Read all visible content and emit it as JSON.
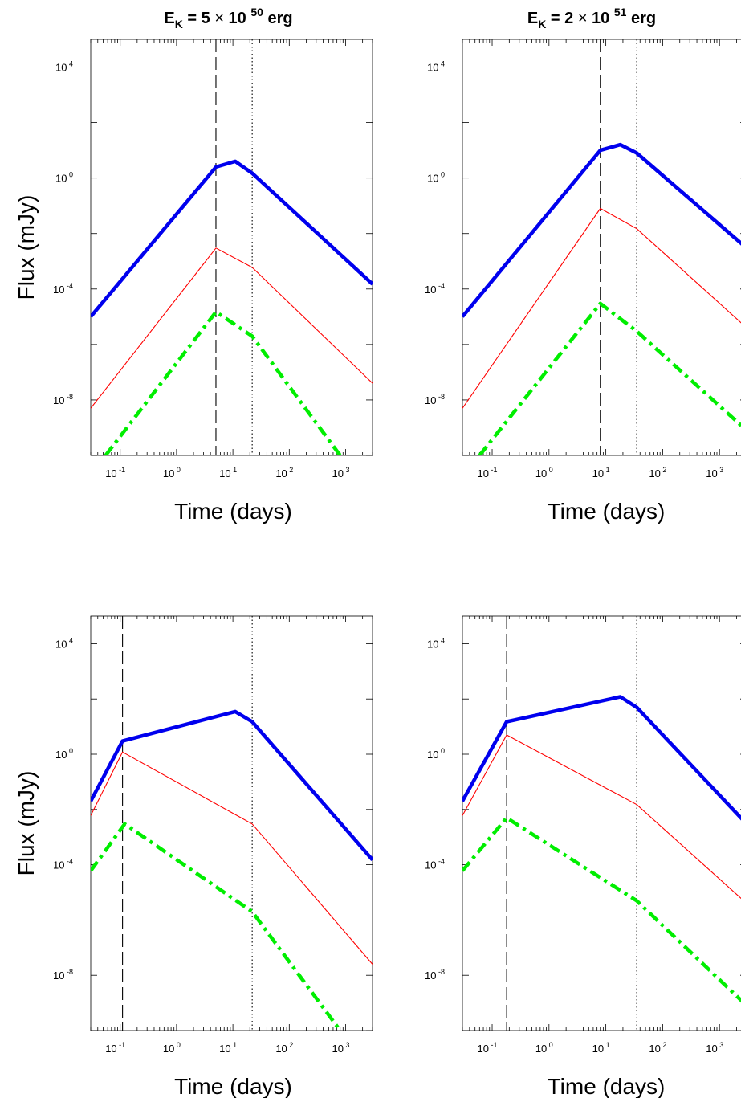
{
  "chart_data": [
    {
      "type": "line",
      "title": {
        "prefix": "E",
        "sub": "K",
        "mid": " = 5 ",
        "times": "×",
        "base": " 10 ",
        "exp": "50",
        "suffix": " erg"
      },
      "xlabel": "Time (days)",
      "ylabel": "Flux (mJy)",
      "xscale": "log",
      "yscale": "log",
      "xlim": [
        0.03,
        3000
      ],
      "ylim": [
        1e-10,
        100000.0
      ],
      "xticks": [
        {
          "base": "10",
          "exp": "-1",
          "v": 0.1
        },
        {
          "base": "10",
          "exp": "0",
          "v": 1
        },
        {
          "base": "10",
          "exp": "1",
          "v": 10
        },
        {
          "base": "10",
          "exp": "2",
          "v": 100
        },
        {
          "base": "10",
          "exp": "3",
          "v": 1000
        }
      ],
      "yticks": [
        {
          "base": "10",
          "exp": "-8",
          "v": 1e-08
        },
        {
          "base": "10",
          "exp": "-4",
          "v": 0.0001
        },
        {
          "base": "10",
          "exp": "0",
          "v": 1
        },
        {
          "base": "10",
          "exp": "4",
          "v": 10000.0
        }
      ],
      "vlines": [
        {
          "x": 5,
          "style": "dashed"
        },
        {
          "x": 22,
          "style": "dotted"
        }
      ],
      "series": [
        {
          "color": "#0000ee",
          "style": "solid-thick",
          "points": [
            [
              0.03,
              1e-05
            ],
            [
              5,
              2.5
            ],
            [
              11,
              4
            ],
            [
              22,
              1.5
            ],
            [
              3000,
              0.00015
            ]
          ]
        },
        {
          "color": "#ff0000",
          "style": "solid-thin",
          "points": [
            [
              0.03,
              5e-09
            ],
            [
              5,
              0.003
            ],
            [
              22,
              0.0006
            ],
            [
              3000,
              4e-08
            ]
          ]
        },
        {
          "color": "#00ee00",
          "style": "dashdot",
          "points": [
            [
              0.055,
              1e-10
            ],
            [
              5,
              1.5e-05
            ],
            [
              22,
              2e-06
            ],
            [
              800,
              1e-10
            ]
          ]
        }
      ]
    },
    {
      "type": "line",
      "title": {
        "prefix": "E",
        "sub": "K",
        "mid": " = 2 ",
        "times": "×",
        "base": " 10 ",
        "exp": "51",
        "suffix": " erg"
      },
      "xlabel": "Time (days)",
      "ylabel": "",
      "xscale": "log",
      "yscale": "log",
      "xlim": [
        0.03,
        3000
      ],
      "ylim": [
        1e-10,
        100000.0
      ],
      "xticks": [
        {
          "base": "10",
          "exp": "-1",
          "v": 0.1
        },
        {
          "base": "10",
          "exp": "0",
          "v": 1
        },
        {
          "base": "10",
          "exp": "1",
          "v": 10
        },
        {
          "base": "10",
          "exp": "2",
          "v": 100
        },
        {
          "base": "10",
          "exp": "3",
          "v": 1000
        }
      ],
      "yticks": [
        {
          "base": "10",
          "exp": "-8",
          "v": 1e-08
        },
        {
          "base": "10",
          "exp": "-4",
          "v": 0.0001
        },
        {
          "base": "10",
          "exp": "0",
          "v": 1
        },
        {
          "base": "10",
          "exp": "4",
          "v": 10000.0
        }
      ],
      "vlines": [
        {
          "x": 8,
          "style": "dashed"
        },
        {
          "x": 35,
          "style": "dotted"
        }
      ],
      "series": [
        {
          "color": "#0000ee",
          "style": "solid-thick",
          "points": [
            [
              0.03,
              1e-05
            ],
            [
              8,
              10
            ],
            [
              18,
              16
            ],
            [
              35,
              8
            ],
            [
              3000,
              0.003
            ]
          ]
        },
        {
          "color": "#ff0000",
          "style": "solid-thin",
          "points": [
            [
              0.03,
              5e-09
            ],
            [
              8,
              0.08
            ],
            [
              35,
              0.015
            ],
            [
              3000,
              4e-06
            ]
          ]
        },
        {
          "color": "#00ee00",
          "style": "dashdot",
          "points": [
            [
              0.06,
              1e-10
            ],
            [
              8,
              3e-05
            ],
            [
              35,
              3e-06
            ],
            [
              3000,
              8e-10
            ]
          ]
        }
      ]
    },
    {
      "type": "line",
      "title": null,
      "xlabel": "Time (days)",
      "ylabel": "Flux (mJy)",
      "xscale": "log",
      "yscale": "log",
      "xlim": [
        0.03,
        3000
      ],
      "ylim": [
        1e-10,
        100000.0
      ],
      "xticks": [
        {
          "base": "10",
          "exp": "-1",
          "v": 0.1
        },
        {
          "base": "10",
          "exp": "0",
          "v": 1
        },
        {
          "base": "10",
          "exp": "1",
          "v": 10
        },
        {
          "base": "10",
          "exp": "2",
          "v": 100
        },
        {
          "base": "10",
          "exp": "3",
          "v": 1000
        }
      ],
      "yticks": [
        {
          "base": "10",
          "exp": "-8",
          "v": 1e-08
        },
        {
          "base": "10",
          "exp": "-4",
          "v": 0.0001
        },
        {
          "base": "10",
          "exp": "0",
          "v": 1
        },
        {
          "base": "10",
          "exp": "4",
          "v": 10000.0
        }
      ],
      "vlines": [
        {
          "x": 0.11,
          "style": "dashed"
        },
        {
          "x": 22,
          "style": "dotted"
        }
      ],
      "series": [
        {
          "color": "#0000ee",
          "style": "solid-thick",
          "points": [
            [
              0.03,
              0.02
            ],
            [
              0.11,
              3
            ],
            [
              11,
              35
            ],
            [
              22,
              15
            ],
            [
              3000,
              0.00015
            ]
          ]
        },
        {
          "color": "#ff0000",
          "style": "solid-thin",
          "points": [
            [
              0.03,
              0.006
            ],
            [
              0.11,
              1.2
            ],
            [
              22,
              0.003
            ],
            [
              3000,
              2.5e-08
            ]
          ]
        },
        {
          "color": "#00ee00",
          "style": "dashdot",
          "points": [
            [
              0.03,
              6e-05
            ],
            [
              0.12,
              0.003
            ],
            [
              22,
              2e-06
            ],
            [
              800,
              1e-10
            ]
          ]
        }
      ]
    },
    {
      "type": "line",
      "title": null,
      "xlabel": "Time (days)",
      "ylabel": "",
      "xscale": "log",
      "yscale": "log",
      "xlim": [
        0.03,
        3000
      ],
      "ylim": [
        1e-10,
        100000.0
      ],
      "xticks": [
        {
          "base": "10",
          "exp": "-1",
          "v": 0.1
        },
        {
          "base": "10",
          "exp": "0",
          "v": 1
        },
        {
          "base": "10",
          "exp": "1",
          "v": 10
        },
        {
          "base": "10",
          "exp": "2",
          "v": 100
        },
        {
          "base": "10",
          "exp": "3",
          "v": 1000
        }
      ],
      "yticks": [
        {
          "base": "10",
          "exp": "-8",
          "v": 1e-08
        },
        {
          "base": "10",
          "exp": "-4",
          "v": 0.0001
        },
        {
          "base": "10",
          "exp": "0",
          "v": 1
        },
        {
          "base": "10",
          "exp": "4",
          "v": 10000.0
        }
      ],
      "vlines": [
        {
          "x": 0.18,
          "style": "dashed"
        },
        {
          "x": 35,
          "style": "dotted"
        }
      ],
      "series": [
        {
          "color": "#0000ee",
          "style": "solid-thick",
          "points": [
            [
              0.03,
              0.02
            ],
            [
              0.18,
              15
            ],
            [
              18,
              120
            ],
            [
              35,
              50
            ],
            [
              3000,
              0.003
            ]
          ]
        },
        {
          "color": "#ff0000",
          "style": "solid-thin",
          "points": [
            [
              0.03,
              0.006
            ],
            [
              0.18,
              5
            ],
            [
              35,
              0.015
            ],
            [
              3000,
              4e-06
            ]
          ]
        },
        {
          "color": "#00ee00",
          "style": "dashdot",
          "points": [
            [
              0.03,
              6e-05
            ],
            [
              0.18,
              0.005
            ],
            [
              35,
              5e-06
            ],
            [
              3000,
              8e-10
            ]
          ]
        }
      ]
    }
  ]
}
